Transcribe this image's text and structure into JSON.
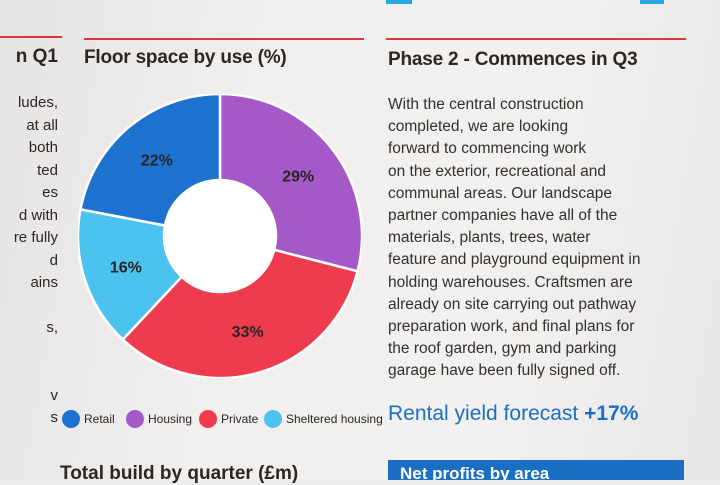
{
  "left_column": {
    "heading": "n Q1",
    "lines": [
      "ludes,",
      "at all",
      "both",
      "ted",
      "es",
      "d with",
      "re fully",
      "d",
      "ains",
      "",
      "s,",
      "",
      "",
      "v",
      "s"
    ]
  },
  "chart": {
    "title": "Floor space by use (%)"
  },
  "chart_data": {
    "type": "pie",
    "donut": true,
    "title": "Floor space by use (%)",
    "categories": [
      "Retail",
      "Housing",
      "Private",
      "Sheltered housing"
    ],
    "values": [
      22,
      29,
      33,
      16
    ],
    "labels": [
      "22%",
      "29%",
      "33%",
      "16%"
    ],
    "colors": [
      "#1e72cf",
      "#a559c9",
      "#ef3b4e",
      "#4cc3ee"
    ],
    "legend_position": "bottom"
  },
  "right_column": {
    "heading": "Phase 2 - Commences in Q3",
    "body_lines": [
      "With the central construction",
      "completed, we are looking",
      "forward to commencing work",
      "on the exterior, recreational and",
      "communal areas. Our landscape",
      "partner companies have all of the",
      "materials, plants, trees, water",
      "feature and playground equipment in",
      "holding warehouses. Craftsmen are",
      "already on site carrying out pathway",
      "preparation work, and final plans for",
      "the roof garden, gym and parking",
      "garage have been fully signed off."
    ],
    "rental_label": "Rental yield forecast",
    "rental_value": "+17%",
    "box_heading": "Net profits by area"
  },
  "bottom_heading": "Total build by quarter (£m)"
}
